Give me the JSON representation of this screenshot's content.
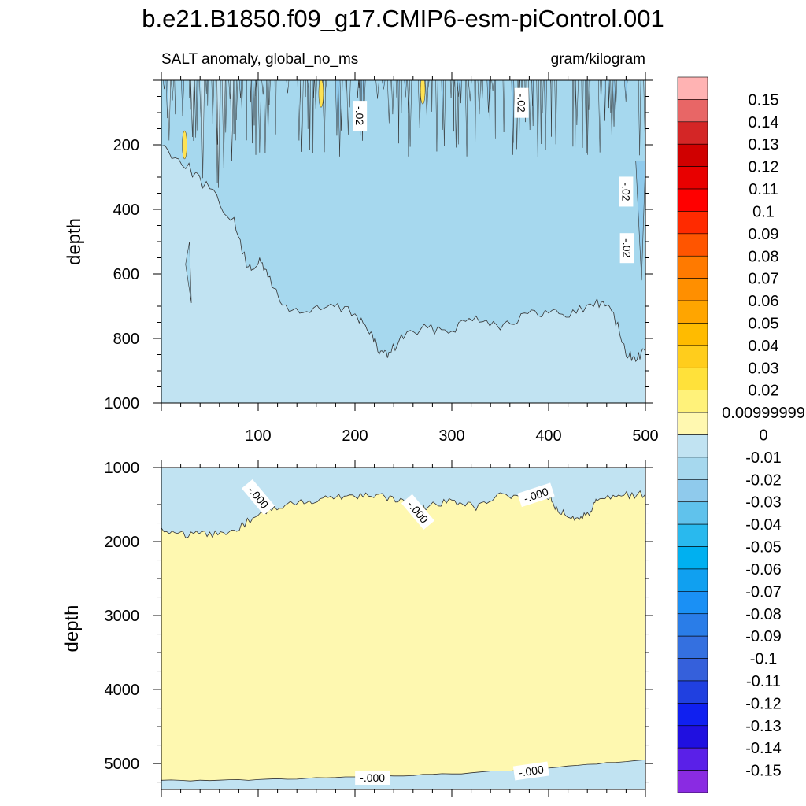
{
  "title": "b.e21.B1850.f09_g17.CMIP6-esm-piControl.001",
  "subtitle_left": "SALT anomaly, global_no_ms",
  "subtitle_right": "gram/kilogram",
  "colors": {
    "zero_to_pos": "#fef8b0",
    "neg_0_01": "#c1e3f2",
    "neg_0_02": "#a6d8ee",
    "neg_0_03": "#8fcaec",
    "neg_0_04": "#60c2ec",
    "pos_0_02": "#fee252",
    "contour_line": "#333333"
  },
  "chart_data": [
    {
      "type": "contour",
      "panel": "upper",
      "xlabel": "",
      "ylabel": "depth",
      "xlim": [
        0,
        500
      ],
      "ylim": [
        1000,
        0
      ],
      "y_reversed": true,
      "x_ticks": [
        100,
        200,
        300,
        400,
        500
      ],
      "y_ticks": [
        200,
        400,
        600,
        800,
        1000
      ],
      "contour_labels": [
        "-.02",
        "-.02",
        "-.02",
        "-.02"
      ],
      "regions": [
        {
          "level": "-0.01",
          "description_value": "from boundary to bottom",
          "boundary_x": [
            0,
            500
          ],
          "boundary_depth": [
            1000,
            1000
          ]
        },
        {
          "level": "-0.02",
          "boundary_x": [
            0,
            25,
            50,
            75,
            90,
            100,
            110,
            125,
            150,
            175,
            200,
            215,
            225,
            235,
            250,
            275,
            300,
            325,
            350,
            375,
            400,
            425,
            450,
            465,
            480,
            490,
            500
          ],
          "boundary_depth": [
            200,
            260,
            340,
            440,
            590,
            560,
            600,
            700,
            720,
            700,
            720,
            780,
            840,
            850,
            790,
            770,
            770,
            730,
            760,
            730,
            720,
            720,
            690,
            700,
            850,
            860,
            840
          ]
        }
      ]
    },
    {
      "type": "contour",
      "panel": "lower",
      "xlabel": "",
      "ylabel": "depth",
      "xlim": [
        0,
        500
      ],
      "ylim": [
        5350,
        1000
      ],
      "y_reversed": true,
      "x_ticks": [
        100,
        200,
        300,
        400,
        500
      ],
      "y_ticks": [
        1000,
        2000,
        3000,
        4000,
        5000
      ],
      "contour_labels": [
        "-.000",
        "-.000",
        "-.000",
        "-.000",
        "-.000"
      ],
      "regions": [
        {
          "level": "-0.01",
          "description_value": "upper layer",
          "boundary_x": [
            0,
            25,
            50,
            75,
            100,
            125,
            150,
            175,
            200,
            225,
            250,
            265,
            275,
            300,
            325,
            350,
            375,
            400,
            410,
            425,
            440,
            450,
            475,
            500
          ],
          "boundary_depth": [
            1850,
            1920,
            1900,
            1860,
            1620,
            1530,
            1450,
            1400,
            1370,
            1370,
            1460,
            1590,
            1520,
            1450,
            1530,
            1380,
            1450,
            1380,
            1580,
            1670,
            1650,
            1420,
            1370,
            1360
          ]
        },
        {
          "level": "0",
          "description_value": "middle layer between the two boundaries"
        },
        {
          "level": "-0.01",
          "description_value": "bottom layer",
          "boundary_x": [
            0,
            100,
            200,
            300,
            400,
            500
          ],
          "boundary_depth": [
            5230,
            5220,
            5180,
            5140,
            5060,
            4950
          ]
        }
      ]
    }
  ],
  "colorbar": {
    "labels": [
      "0.15",
      "0.14",
      "0.13",
      "0.12",
      "0.11",
      "0.1",
      "0.09",
      "0.08",
      "0.07",
      "0.06",
      "0.05",
      "0.04",
      "0.03",
      "0.02",
      "0.00999999",
      "0",
      "-0.01",
      "-0.02",
      "-0.03",
      "-0.04",
      "-0.05",
      "-0.06",
      "-0.07",
      "-0.08",
      "-0.09",
      "-0.1",
      "-0.11",
      "-0.12",
      "-0.13",
      "-0.14",
      "-0.15"
    ],
    "box_colors": [
      "#ffb3b3",
      "#e86666",
      "#d42626",
      "#d00000",
      "#e80000",
      "#ff0000",
      "#ff2a00",
      "#ff5500",
      "#ff7a00",
      "#ff8f00",
      "#ffa500",
      "#ffbb00",
      "#ffcd1c",
      "#ffe13a",
      "#fff27a",
      "#fff8b0",
      "#c1e3f2",
      "#a6d8ee",
      "#8fcaec",
      "#60c2ec",
      "#29b9ee",
      "#00b0f0",
      "#10a0f0",
      "#1a90f5",
      "#2a7de8",
      "#3470e0",
      "#3560db",
      "#2040e0",
      "#1020f0",
      "#2010e0",
      "#5a20e8",
      "#8a2be2"
    ]
  }
}
